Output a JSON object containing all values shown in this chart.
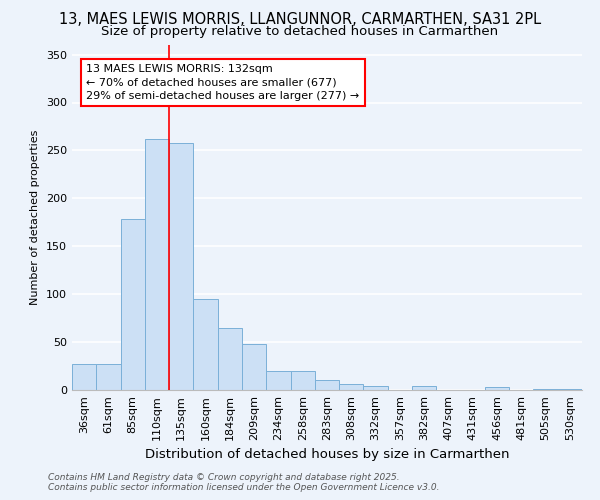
{
  "title": "13, MAES LEWIS MORRIS, LLANGUNNOR, CARMARTHEN, SA31 2PL",
  "subtitle": "Size of property relative to detached houses in Carmarthen",
  "xlabel": "Distribution of detached houses by size in Carmarthen",
  "ylabel": "Number of detached properties",
  "categories": [
    "36sqm",
    "61sqm",
    "85sqm",
    "110sqm",
    "135sqm",
    "160sqm",
    "184sqm",
    "209sqm",
    "234sqm",
    "258sqm",
    "283sqm",
    "308sqm",
    "332sqm",
    "357sqm",
    "382sqm",
    "407sqm",
    "431sqm",
    "456sqm",
    "481sqm",
    "505sqm",
    "530sqm"
  ],
  "values": [
    27,
    27,
    178,
    262,
    258,
    95,
    65,
    48,
    20,
    20,
    10,
    6,
    4,
    0,
    4,
    0,
    0,
    3,
    0,
    1,
    1
  ],
  "bar_color": "#cce0f5",
  "bar_edge_color": "#7ab0d8",
  "background_color": "#edf3fb",
  "grid_color": "#ffffff",
  "redline_x": 3.5,
  "annotation_line1": "13 MAES LEWIS MORRIS: 132sqm",
  "annotation_line2": "← 70% of detached houses are smaller (677)",
  "annotation_line3": "29% of semi-detached houses are larger (277) →",
  "ylim": [
    0,
    360
  ],
  "yticks": [
    0,
    50,
    100,
    150,
    200,
    250,
    300,
    350
  ],
  "footnote1": "Contains HM Land Registry data © Crown copyright and database right 2025.",
  "footnote2": "Contains public sector information licensed under the Open Government Licence v3.0.",
  "title_fontsize": 10.5,
  "subtitle_fontsize": 9.5,
  "xlabel_fontsize": 9.5,
  "ylabel_fontsize": 8,
  "tick_fontsize": 8,
  "annot_fontsize": 8,
  "footnote_fontsize": 6.5
}
